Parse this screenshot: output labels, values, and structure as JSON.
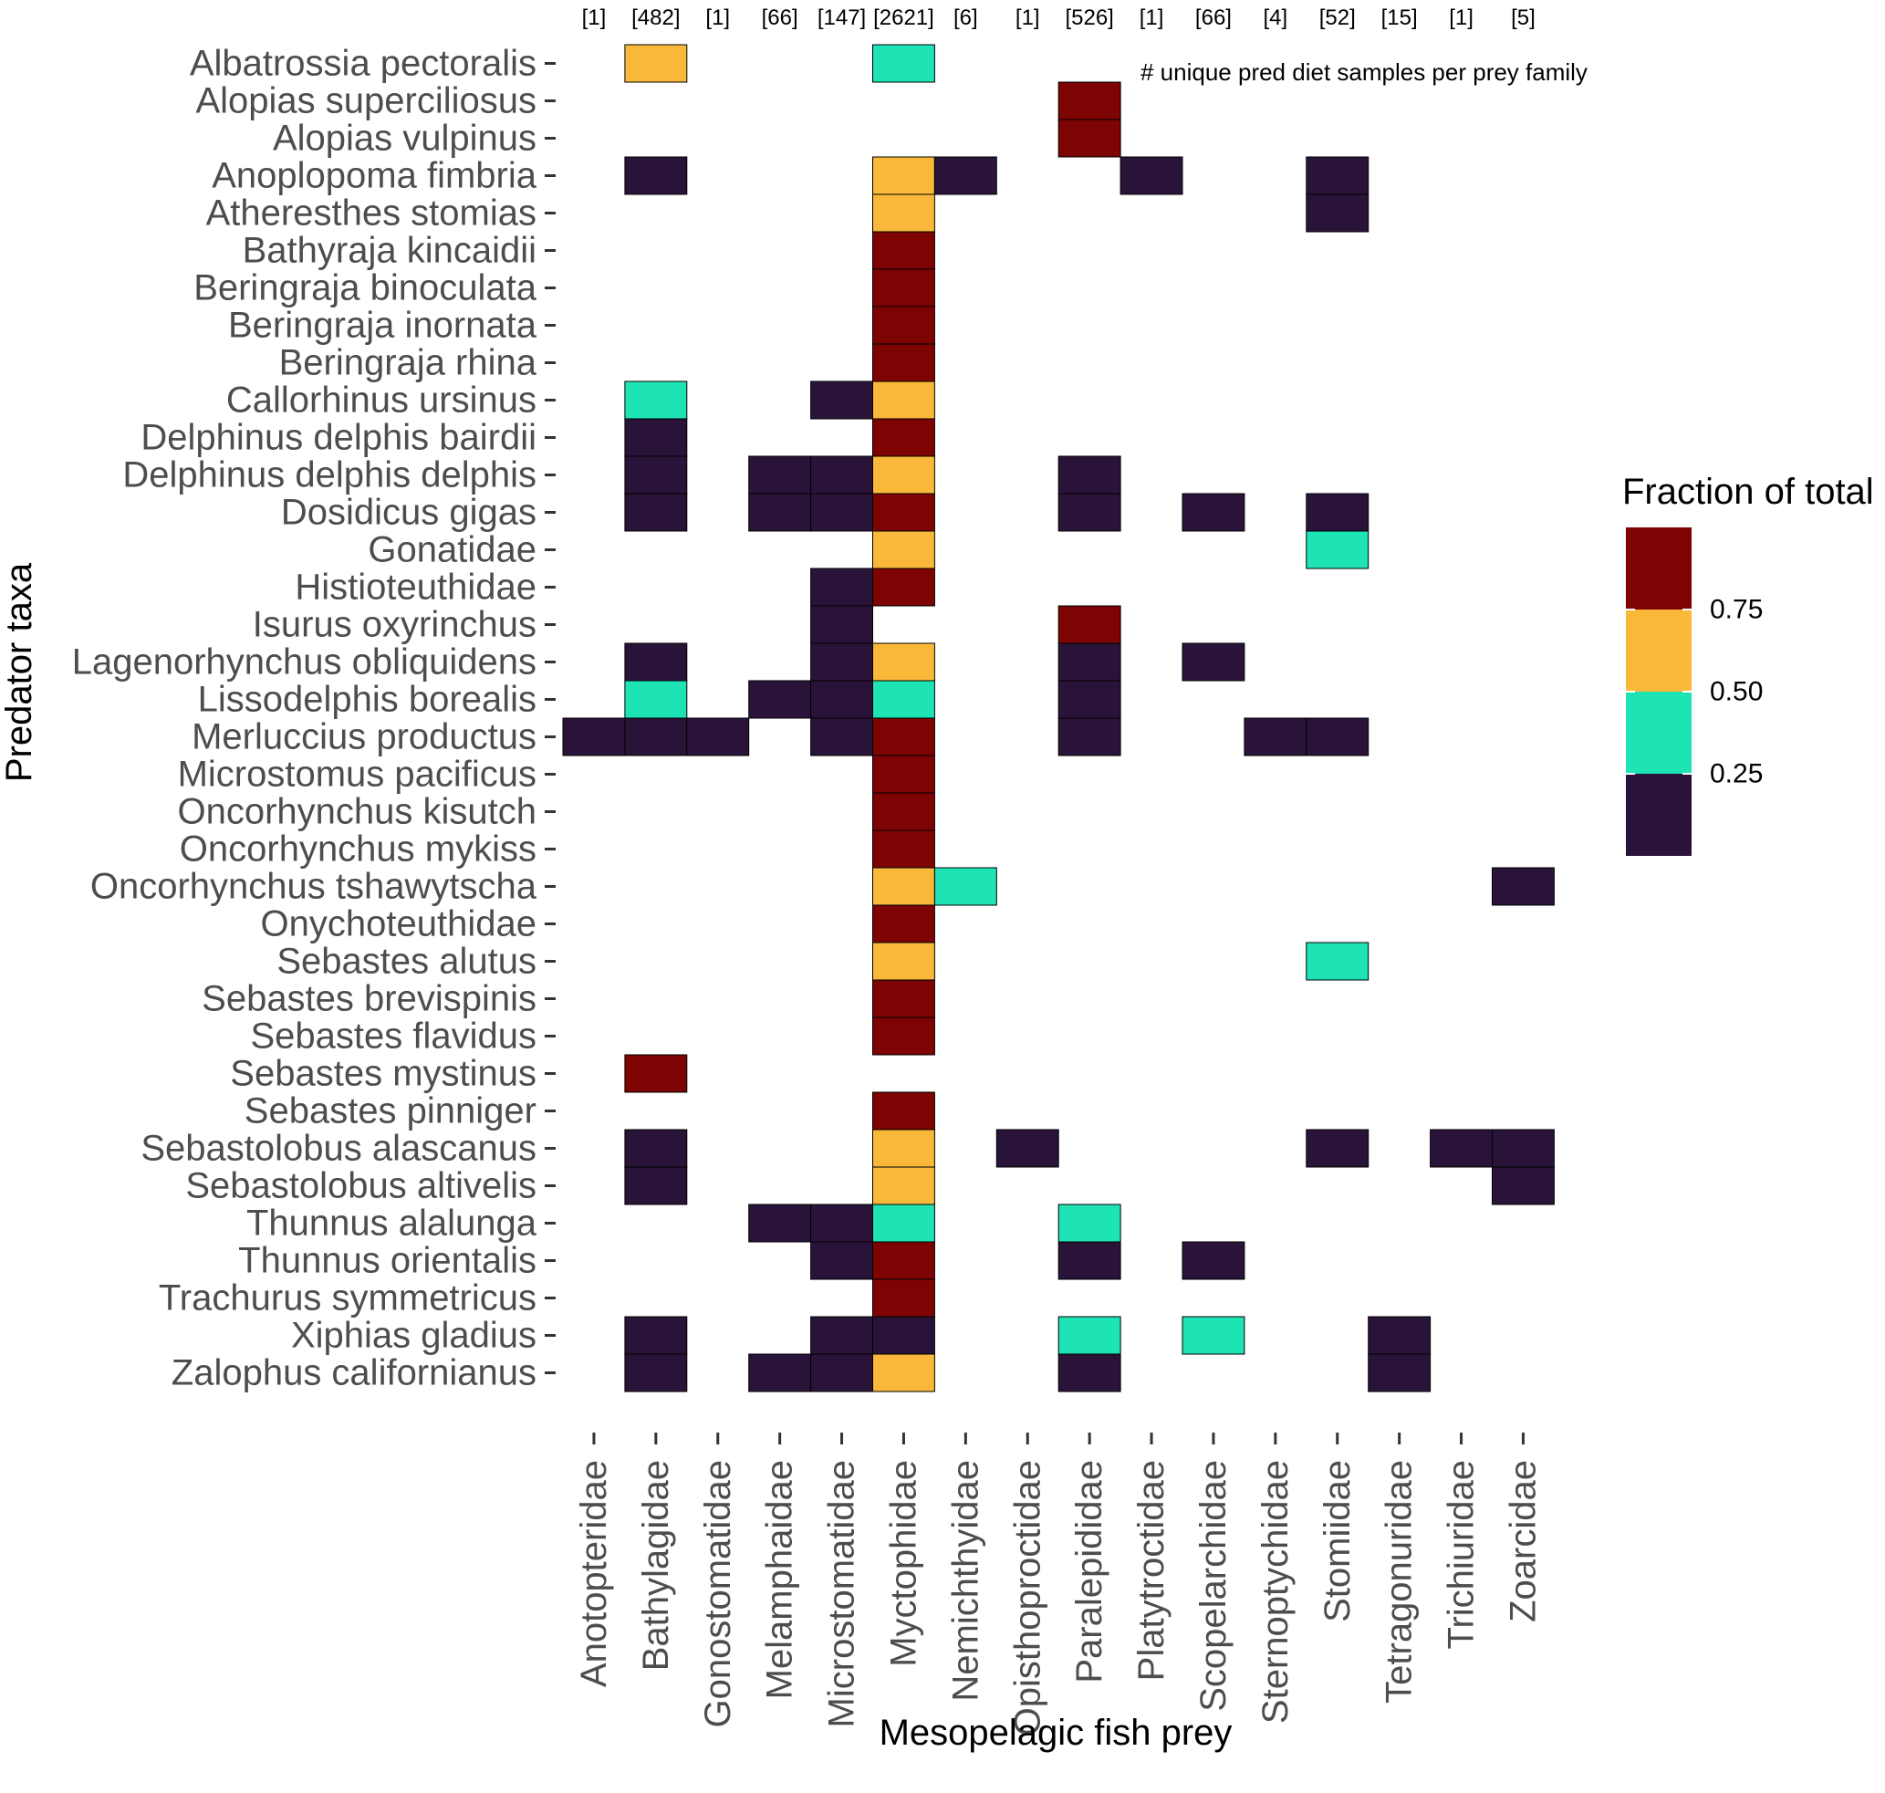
{
  "chart_data": {
    "type": "heatmap",
    "title": "",
    "xlabel": "Mesopelagic fish prey",
    "ylabel": "Predator taxa",
    "annotation": "# unique pred diet samples per prey family",
    "x_categories": [
      "Anotopteridae",
      "Bathylagidae",
      "Gonostomatidae",
      "Melamphaidae",
      "Microstomatidae",
      "Myctophidae",
      "Nemichthyidae",
      "Opisthoproctidae",
      "Paralepididae",
      "Platytroctidae",
      "Scopelarchidae",
      "Sternoptychidae",
      "Stomiidae",
      "Tetragonuridae",
      "Trichiuridae",
      "Zoarcidae"
    ],
    "counts": [
      "[1]",
      "[482]",
      "[1]",
      "[66]",
      "[147]",
      "[2621]",
      "[6]",
      "[1]",
      "[526]",
      "[1]",
      "[66]",
      "[4]",
      "[52]",
      "[15]",
      "[1]",
      "[5]"
    ],
    "y_categories": [
      "Albatrossia pectoralis",
      "Alopias superciliosus",
      "Alopias vulpinus",
      "Anoplopoma fimbria",
      "Atheresthes stomias",
      "Bathyraja kincaidii",
      "Beringraja binoculata",
      "Beringraja inornata",
      "Beringraja rhina",
      "Callorhinus ursinus",
      "Delphinus delphis bairdii",
      "Delphinus delphis delphis",
      "Dosidicus gigas",
      "Gonatidae",
      "Histioteuthidae",
      "Isurus oxyrinchus",
      "Lagenorhynchus obliquidens",
      "Lissodelphis borealis",
      "Merluccius productus",
      "Microstomus pacificus",
      "Oncorhynchus kisutch",
      "Oncorhynchus mykiss",
      "Oncorhynchus tshawytscha",
      "Onychoteuthidae",
      "Sebastes alutus",
      "Sebastes brevispinis",
      "Sebastes flavidus",
      "Sebastes mystinus",
      "Sebastes pinniger",
      "Sebastolobus alascanus",
      "Sebastolobus altivelis",
      "Thunnus alalunga",
      "Thunnus orientalis",
      "Trachurus symmetricus",
      "Xiphias gladius",
      "Zalophus californianus"
    ],
    "cells": [
      [
        "Albatrossia pectoralis",
        "Bathylagidae",
        0.6
      ],
      [
        "Albatrossia pectoralis",
        "Myctophidae",
        0.4
      ],
      [
        "Alopias superciliosus",
        "Paralepididae",
        1.0
      ],
      [
        "Alopias vulpinus",
        "Paralepididae",
        1.0
      ],
      [
        "Anoplopoma fimbria",
        "Bathylagidae",
        0.1
      ],
      [
        "Anoplopoma fimbria",
        "Myctophidae",
        0.6
      ],
      [
        "Anoplopoma fimbria",
        "Nemichthyidae",
        0.1
      ],
      [
        "Anoplopoma fimbria",
        "Platytroctidae",
        0.1
      ],
      [
        "Anoplopoma fimbria",
        "Stomiidae",
        0.1
      ],
      [
        "Atheresthes stomias",
        "Myctophidae",
        0.7
      ],
      [
        "Atheresthes stomias",
        "Stomiidae",
        0.2
      ],
      [
        "Bathyraja kincaidii",
        "Myctophidae",
        1.0
      ],
      [
        "Beringraja binoculata",
        "Myctophidae",
        1.0
      ],
      [
        "Beringraja inornata",
        "Myctophidae",
        1.0
      ],
      [
        "Beringraja rhina",
        "Myctophidae",
        1.0
      ],
      [
        "Callorhinus ursinus",
        "Bathylagidae",
        0.4
      ],
      [
        "Callorhinus ursinus",
        "Microstomatidae",
        0.1
      ],
      [
        "Callorhinus ursinus",
        "Myctophidae",
        0.6
      ],
      [
        "Delphinus delphis bairdii",
        "Bathylagidae",
        0.1
      ],
      [
        "Delphinus delphis bairdii",
        "Myctophidae",
        0.9
      ],
      [
        "Delphinus delphis delphis",
        "Bathylagidae",
        0.1
      ],
      [
        "Delphinus delphis delphis",
        "Melamphaidae",
        0.1
      ],
      [
        "Delphinus delphis delphis",
        "Microstomatidae",
        0.1
      ],
      [
        "Delphinus delphis delphis",
        "Myctophidae",
        0.6
      ],
      [
        "Delphinus delphis delphis",
        "Paralepididae",
        0.1
      ],
      [
        "Dosidicus gigas",
        "Bathylagidae",
        0.1
      ],
      [
        "Dosidicus gigas",
        "Melamphaidae",
        0.1
      ],
      [
        "Dosidicus gigas",
        "Microstomatidae",
        0.1
      ],
      [
        "Dosidicus gigas",
        "Myctophidae",
        0.8
      ],
      [
        "Dosidicus gigas",
        "Paralepididae",
        0.1
      ],
      [
        "Dosidicus gigas",
        "Scopelarchidae",
        0.1
      ],
      [
        "Dosidicus gigas",
        "Stomiidae",
        0.1
      ],
      [
        "Gonatidae",
        "Myctophidae",
        0.6
      ],
      [
        "Gonatidae",
        "Stomiidae",
        0.4
      ],
      [
        "Histioteuthidae",
        "Microstomatidae",
        0.2
      ],
      [
        "Histioteuthidae",
        "Myctophidae",
        0.8
      ],
      [
        "Isurus oxyrinchus",
        "Microstomatidae",
        0.1
      ],
      [
        "Isurus oxyrinchus",
        "Paralepididae",
        0.9
      ],
      [
        "Lagenorhynchus obliquidens",
        "Bathylagidae",
        0.1
      ],
      [
        "Lagenorhynchus obliquidens",
        "Microstomatidae",
        0.1
      ],
      [
        "Lagenorhynchus obliquidens",
        "Myctophidae",
        0.6
      ],
      [
        "Lagenorhynchus obliquidens",
        "Paralepididae",
        0.1
      ],
      [
        "Lagenorhynchus obliquidens",
        "Scopelarchidae",
        0.1
      ],
      [
        "Lissodelphis borealis",
        "Bathylagidae",
        0.4
      ],
      [
        "Lissodelphis borealis",
        "Melamphaidae",
        0.1
      ],
      [
        "Lissodelphis borealis",
        "Microstomatidae",
        0.1
      ],
      [
        "Lissodelphis borealis",
        "Myctophidae",
        0.4
      ],
      [
        "Lissodelphis borealis",
        "Paralepididae",
        0.1
      ],
      [
        "Merluccius productus",
        "Anotopteridae",
        0.1
      ],
      [
        "Merluccius productus",
        "Bathylagidae",
        0.1
      ],
      [
        "Merluccius productus",
        "Gonostomatidae",
        0.1
      ],
      [
        "Merluccius productus",
        "Microstomatidae",
        0.1
      ],
      [
        "Merluccius productus",
        "Myctophidae",
        0.8
      ],
      [
        "Merluccius productus",
        "Paralepididae",
        0.1
      ],
      [
        "Merluccius productus",
        "Sternoptychidae",
        0.1
      ],
      [
        "Merluccius productus",
        "Stomiidae",
        0.1
      ],
      [
        "Microstomus pacificus",
        "Myctophidae",
        1.0
      ],
      [
        "Oncorhynchus kisutch",
        "Myctophidae",
        1.0
      ],
      [
        "Oncorhynchus mykiss",
        "Myctophidae",
        1.0
      ],
      [
        "Oncorhynchus tshawytscha",
        "Myctophidae",
        0.6
      ],
      [
        "Oncorhynchus tshawytscha",
        "Nemichthyidae",
        0.4
      ],
      [
        "Oncorhynchus tshawytscha",
        "Zoarcidae",
        0.1
      ],
      [
        "Onychoteuthidae",
        "Myctophidae",
        1.0
      ],
      [
        "Sebastes alutus",
        "Myctophidae",
        0.6
      ],
      [
        "Sebastes alutus",
        "Stomiidae",
        0.4
      ],
      [
        "Sebastes brevispinis",
        "Myctophidae",
        1.0
      ],
      [
        "Sebastes flavidus",
        "Myctophidae",
        1.0
      ],
      [
        "Sebastes mystinus",
        "Bathylagidae",
        1.0
      ],
      [
        "Sebastes pinniger",
        "Myctophidae",
        1.0
      ],
      [
        "Sebastolobus alascanus",
        "Bathylagidae",
        0.1
      ],
      [
        "Sebastolobus alascanus",
        "Myctophidae",
        0.6
      ],
      [
        "Sebastolobus alascanus",
        "Opisthoproctidae",
        0.1
      ],
      [
        "Sebastolobus alascanus",
        "Stomiidae",
        0.1
      ],
      [
        "Sebastolobus alascanus",
        "Trichiuridae",
        0.1
      ],
      [
        "Sebastolobus alascanus",
        "Zoarcidae",
        0.1
      ],
      [
        "Sebastolobus altivelis",
        "Bathylagidae",
        0.2
      ],
      [
        "Sebastolobus altivelis",
        "Myctophidae",
        0.6
      ],
      [
        "Sebastolobus altivelis",
        "Zoarcidae",
        0.2
      ],
      [
        "Thunnus alalunga",
        "Melamphaidae",
        0.1
      ],
      [
        "Thunnus alalunga",
        "Microstomatidae",
        0.1
      ],
      [
        "Thunnus alalunga",
        "Myctophidae",
        0.4
      ],
      [
        "Thunnus alalunga",
        "Paralepididae",
        0.4
      ],
      [
        "Thunnus orientalis",
        "Microstomatidae",
        0.1
      ],
      [
        "Thunnus orientalis",
        "Myctophidae",
        0.8
      ],
      [
        "Thunnus orientalis",
        "Paralepididae",
        0.1
      ],
      [
        "Thunnus orientalis",
        "Scopelarchidae",
        0.1
      ],
      [
        "Trachurus symmetricus",
        "Myctophidae",
        1.0
      ],
      [
        "Xiphias gladius",
        "Bathylagidae",
        0.1
      ],
      [
        "Xiphias gladius",
        "Microstomatidae",
        0.1
      ],
      [
        "Xiphias gladius",
        "Myctophidae",
        0.2
      ],
      [
        "Xiphias gladius",
        "Paralepididae",
        0.3
      ],
      [
        "Xiphias gladius",
        "Scopelarchidae",
        0.3
      ],
      [
        "Xiphias gladius",
        "Tetragonuridae",
        0.1
      ],
      [
        "Zalophus californianus",
        "Bathylagidae",
        0.1
      ],
      [
        "Zalophus californianus",
        "Melamphaidae",
        0.1
      ],
      [
        "Zalophus californianus",
        "Microstomatidae",
        0.1
      ],
      [
        "Zalophus californianus",
        "Myctophidae",
        0.6
      ],
      [
        "Zalophus californianus",
        "Paralepididae",
        0.1
      ],
      [
        "Zalophus californianus",
        "Tetragonuridae",
        0.1
      ]
    ],
    "legend": {
      "title": "Fraction of total",
      "bins": [
        {
          "min": 0.0,
          "max": 0.25,
          "color": "#2a1338"
        },
        {
          "min": 0.25,
          "max": 0.5,
          "color": "#1ee3b5"
        },
        {
          "min": 0.5,
          "max": 0.75,
          "color": "#f9b83a"
        },
        {
          "min": 0.75,
          "max": 1.0,
          "color": "#7d0403"
        }
      ],
      "labels": [
        "0.75",
        "0.50",
        "0.25"
      ]
    }
  }
}
